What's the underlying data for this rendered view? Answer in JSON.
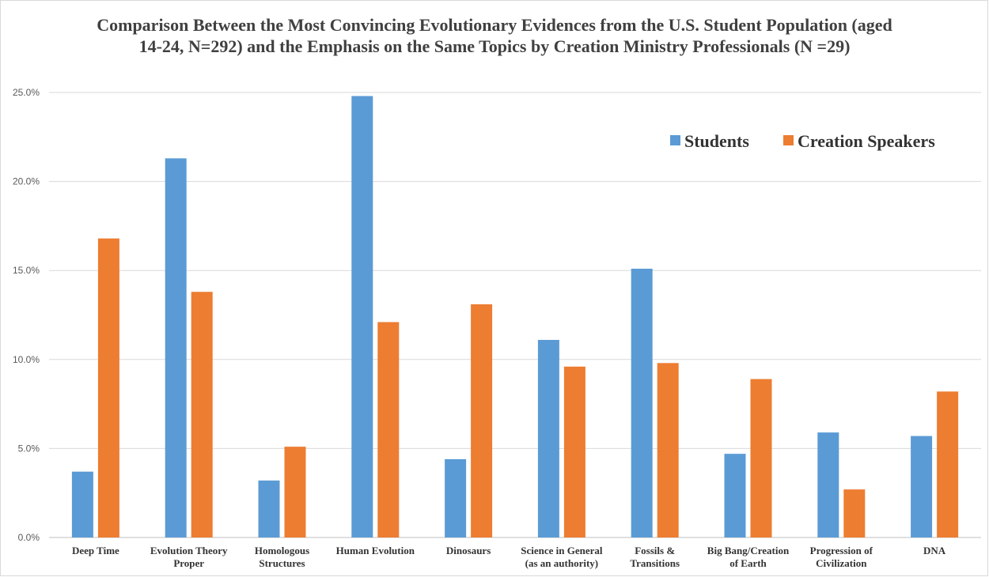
{
  "chart_data": {
    "type": "bar",
    "title": "Comparison Between the Most Convincing Evolutionary Evidences from the U.S. Student Population (aged 14-24, N=292) and the Emphasis on the Same Topics by Creation Ministry Professionals (N =29)",
    "xlabel": "",
    "ylabel": "",
    "ylim": [
      0,
      25
    ],
    "yticks": [
      0,
      5,
      10,
      15,
      20,
      25
    ],
    "ytick_labels": [
      "0.0%",
      "5.0%",
      "10.0%",
      "15.0%",
      "20.0%",
      "25.0%"
    ],
    "grid": true,
    "legend_position": "top-right",
    "categories": [
      [
        "Deep Time"
      ],
      [
        "Evolution Theory",
        "Proper"
      ],
      [
        "Homologous",
        "Structures"
      ],
      [
        "Human Evolution"
      ],
      [
        "Dinosaurs"
      ],
      [
        "Science in General",
        "(as an authority)"
      ],
      [
        "Fossils &",
        "Transitions"
      ],
      [
        "Big Bang/Creation",
        "of Earth"
      ],
      [
        "Progression of",
        "Civilization"
      ],
      [
        "DNA"
      ]
    ],
    "series": [
      {
        "name": "Students",
        "color": "#5b9bd5",
        "values": [
          3.7,
          21.3,
          3.2,
          24.8,
          4.4,
          11.1,
          15.1,
          4.7,
          5.9,
          5.7
        ]
      },
      {
        "name": "Creation Speakers",
        "color": "#ed7d31",
        "values": [
          16.8,
          13.8,
          5.1,
          12.1,
          13.1,
          9.6,
          9.8,
          8.9,
          2.7,
          8.2
        ]
      }
    ]
  }
}
